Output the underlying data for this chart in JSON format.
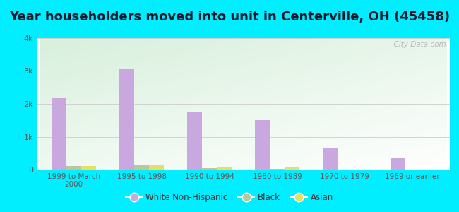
{
  "title": "Year householders moved into unit in Centerville, OH (45458)",
  "categories": [
    "1999 to March\n2000",
    "1995 to 1998",
    "1990 to 1994",
    "1980 to 1989",
    "1970 to 1979",
    "1969 or earlier"
  ],
  "white": [
    2200,
    3050,
    1750,
    1500,
    650,
    340
  ],
  "black": [
    110,
    130,
    45,
    18,
    10,
    0
  ],
  "asian": [
    105,
    155,
    60,
    70,
    0,
    0
  ],
  "white_color": "#c9a8e0",
  "black_color": "#b8c89a",
  "asian_color": "#e8de60",
  "background_outer": "#00eeff",
  "background_inner_top_left": "#d8f0dc",
  "background_inner_bottom_right": "#ffffff",
  "ylim": [
    0,
    4000
  ],
  "yticks": [
    0,
    1000,
    2000,
    3000,
    4000
  ],
  "ytick_labels": [
    "0",
    "1k",
    "2k",
    "3k",
    "4k"
  ],
  "bar_width": 0.22,
  "title_fontsize": 13,
  "watermark": "  City-Data.com"
}
